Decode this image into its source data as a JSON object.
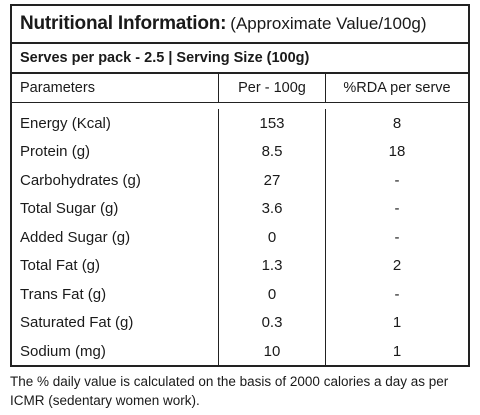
{
  "title": {
    "bold": "Nutritional Information:",
    "normal": "(Approximate Value/100g)"
  },
  "serves_line": "Serves per pack - 2.5 | Serving Size (100g)",
  "columns": [
    "Parameters",
    "Per - 100g",
    "%RDA per serve"
  ],
  "rows": [
    {
      "parameter": "Energy (Kcal)",
      "per_100g": "153",
      "rda": "8"
    },
    {
      "parameter": "Protein (g)",
      "per_100g": "8.5",
      "rda": "18"
    },
    {
      "parameter": "Carbohydrates (g)",
      "per_100g": "27",
      "rda": "-"
    },
    {
      "parameter": "Total Sugar (g)",
      "per_100g": "3.6",
      "rda": "-"
    },
    {
      "parameter": "Added Sugar (g)",
      "per_100g": "0",
      "rda": "-"
    },
    {
      "parameter": "Total Fat (g)",
      "per_100g": "1.3",
      "rda": "2"
    },
    {
      "parameter": "Trans Fat (g)",
      "per_100g": "0",
      "rda": "-"
    },
    {
      "parameter": "Saturated Fat (g)",
      "per_100g": "0.3",
      "rda": "1"
    },
    {
      "parameter": "Sodium (mg)",
      "per_100g": "10",
      "rda": "1"
    }
  ],
  "footnote": "The % daily value is calculated on the basis of 2000 calories a day as per ICMR (sedentary women work)."
}
